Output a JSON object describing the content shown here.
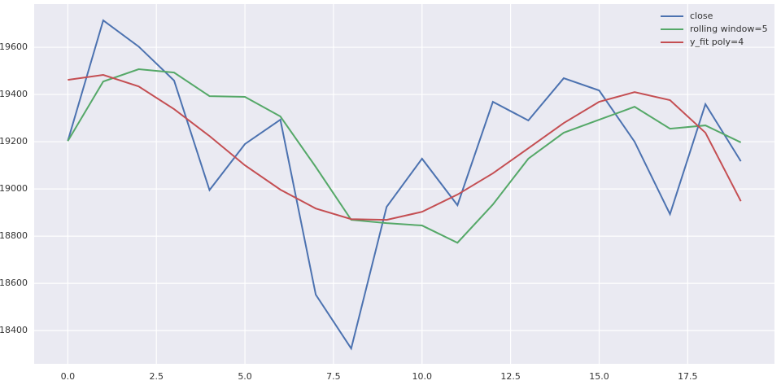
{
  "chart_data": {
    "type": "line",
    "x": [
      0,
      1,
      2,
      3,
      4,
      5,
      6,
      7,
      8,
      9,
      10,
      11,
      12,
      13,
      14,
      15,
      16,
      17,
      18,
      19
    ],
    "series": [
      {
        "name": "close",
        "color": "#4c72b0",
        "values": [
          19203,
          19714,
          19603,
          19459,
          18995,
          19190,
          19293,
          18552,
          18324,
          18924,
          19128,
          18931,
          19369,
          19290,
          19469,
          19417,
          19200,
          18893,
          19359,
          19117
        ]
      },
      {
        "name": "rolling window=5",
        "color": "#55a868",
        "values": [
          19203,
          19455,
          19507,
          19493,
          19393,
          19390,
          19307,
          19093,
          18869,
          18855,
          18845,
          18772,
          18934,
          19128,
          19238,
          19293,
          19348,
          19255,
          19269,
          19197
        ]
      },
      {
        "name": "y_fit poly=4",
        "color": "#c44e52",
        "values": [
          19462,
          19483,
          19434,
          19338,
          19224,
          19100,
          18997,
          18917,
          18872,
          18869,
          18903,
          18976,
          19066,
          19172,
          19279,
          19369,
          19410,
          19376,
          19238,
          18948
        ]
      }
    ],
    "xlim": [
      -0.95,
      19.95
    ],
    "ylim": [
      18259,
      19783
    ],
    "xticks": [
      {
        "value": 0,
        "label": "0.0"
      },
      2.5,
      {
        "value": 5,
        "label": "5.0"
      },
      7.5,
      {
        "value": 10,
        "label": "10.0"
      },
      12.5,
      {
        "value": 15,
        "label": "15.0"
      },
      17.5
    ],
    "yticks": [
      18400,
      18600,
      18800,
      19000,
      19200,
      19400,
      19600
    ],
    "grid": true,
    "legend": "upper-right"
  }
}
